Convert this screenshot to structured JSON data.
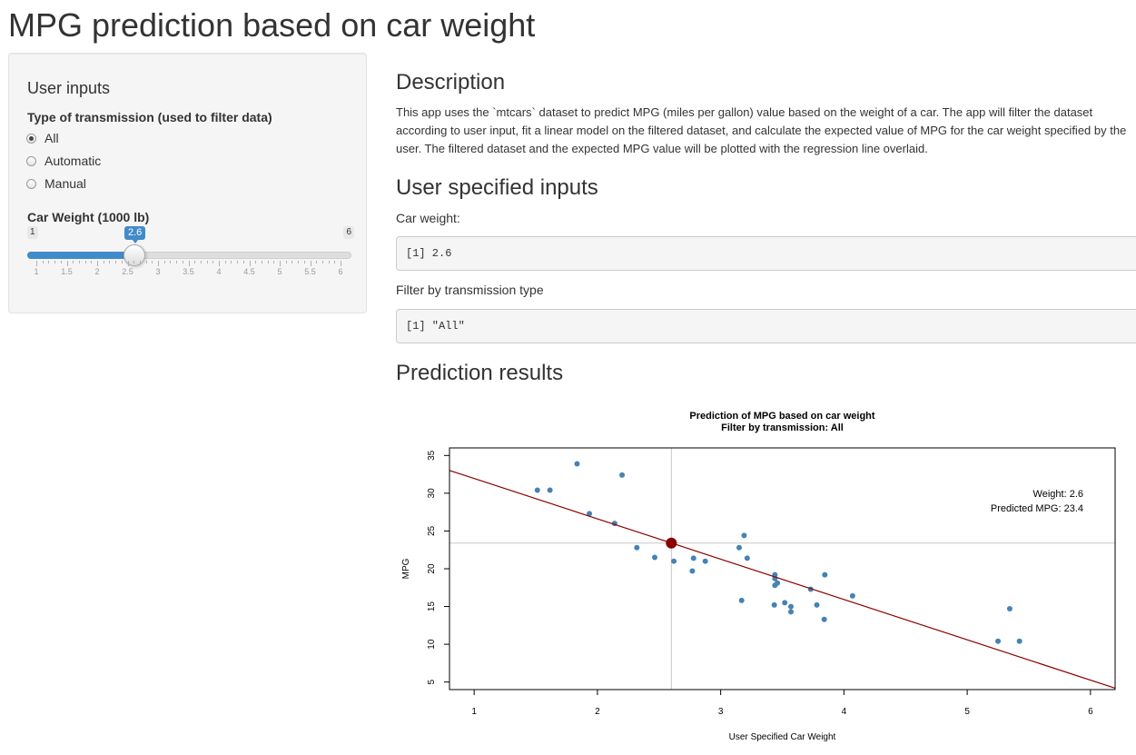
{
  "title": "MPG prediction based on car weight",
  "sidebar": {
    "heading": "User inputs",
    "transmission_label": "Type of transmission (used to filter data)",
    "options": [
      "All",
      "Automatic",
      "Manual"
    ],
    "selected": "All",
    "weight_label": "Car Weight (1000 lb)",
    "slider": {
      "min": 1,
      "max": 6,
      "value": 2.6,
      "min_label": "1",
      "max_label": "6",
      "value_label": "2.6",
      "ticks": [
        "1",
        "1.5",
        "2",
        "2.5",
        "3",
        "3.5",
        "4",
        "4.5",
        "5",
        "5.5",
        "6"
      ],
      "accent": "#428bca"
    }
  },
  "main": {
    "description_heading": "Description",
    "description": "This app uses the `mtcars` dataset to predict MPG (miles per gallon) value based on the weight of a car. The app will filter the dataset according to user input, fit a linear model on the filtered dataset, and calculate the expected value of MPG for the car weight specified by the user. The filtered dataset and the expected MPG value will be plotted with the regression line overlaid.",
    "inputs_heading": "User specified inputs",
    "weight_output_label": "Car weight:",
    "weight_output": "[1] 2.6",
    "filter_output_label": "Filter by transmission type",
    "filter_output": "[1] \"All\"",
    "results_heading": "Prediction results"
  },
  "chart_data": {
    "type": "scatter",
    "title": "Prediction of MPG based on car weight",
    "subtitle": "Filter by transmission: All",
    "xlabel": "User Specified Car Weight",
    "ylabel": "MPG",
    "xlim": [
      0.8,
      6.2
    ],
    "ylim": [
      4,
      36
    ],
    "x_ticks": [
      1,
      2,
      3,
      4,
      5,
      6
    ],
    "y_ticks": [
      5,
      10,
      15,
      20,
      25,
      30,
      35
    ],
    "point_color": "#4682b4",
    "line_color": "#8b0000",
    "points": [
      [
        2.62,
        21.0
      ],
      [
        2.875,
        21.0
      ],
      [
        2.32,
        22.8
      ],
      [
        3.215,
        21.4
      ],
      [
        3.44,
        18.7
      ],
      [
        3.46,
        18.1
      ],
      [
        3.57,
        14.3
      ],
      [
        3.19,
        24.4
      ],
      [
        3.15,
        22.8
      ],
      [
        3.44,
        19.2
      ],
      [
        3.44,
        17.8
      ],
      [
        4.07,
        16.4
      ],
      [
        3.73,
        17.3
      ],
      [
        3.78,
        15.2
      ],
      [
        5.25,
        10.4
      ],
      [
        5.424,
        10.4
      ],
      [
        5.345,
        14.7
      ],
      [
        2.2,
        32.4
      ],
      [
        1.615,
        30.4
      ],
      [
        1.835,
        33.9
      ],
      [
        2.465,
        21.5
      ],
      [
        3.52,
        15.5
      ],
      [
        3.435,
        15.2
      ],
      [
        3.84,
        13.3
      ],
      [
        3.845,
        19.2
      ],
      [
        1.935,
        27.3
      ],
      [
        2.14,
        26.0
      ],
      [
        1.513,
        30.4
      ],
      [
        3.17,
        15.8
      ],
      [
        2.77,
        19.7
      ],
      [
        3.57,
        15.0
      ],
      [
        2.78,
        21.4
      ]
    ],
    "regression": {
      "intercept": 37.29,
      "slope": -5.34
    },
    "prediction": {
      "x": 2.6,
      "y": 23.4,
      "color": "#8b0000"
    },
    "annotation": [
      "Weight: 2.6",
      "Predicted MPG: 23.4"
    ]
  }
}
